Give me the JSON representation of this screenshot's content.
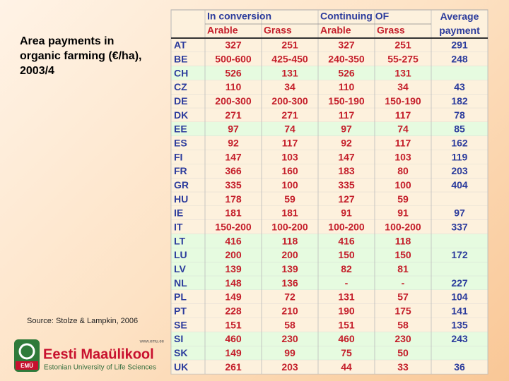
{
  "slide": {
    "title": "Area payments in organic farming (€/ha), 2003/4",
    "source": "Source: Stolze & Lampkin, 2006"
  },
  "logo": {
    "mark": "EMÜ",
    "url": "www.emu.ee",
    "name": "Eesti Maaülikool",
    "subtitle": "Estonian University of Life Sciences"
  },
  "table": {
    "group_headers": [
      "In conversion",
      "Continuing OF"
    ],
    "average_header": "Average payment",
    "sub_headers": [
      "Arable",
      "Grass",
      "Arable",
      "Grass"
    ],
    "rows": [
      {
        "code": "AT",
        "cells": [
          "327",
          "251",
          "327",
          "251",
          "291"
        ]
      },
      {
        "code": "BE",
        "cells": [
          "500-600",
          "425-450",
          "240-350",
          "55-275",
          "248"
        ]
      },
      {
        "code": "CH",
        "cells": [
          "526",
          "131",
          "526",
          "131",
          null
        ]
      },
      {
        "code": "CZ",
        "cells": [
          "110",
          "34",
          "110",
          "34",
          "43"
        ]
      },
      {
        "code": "DE",
        "cells": [
          "200-300",
          "200-300",
          "150-190",
          "150-190",
          "182"
        ]
      },
      {
        "code": "DK",
        "cells": [
          "271",
          "271",
          "117",
          "117",
          "78"
        ]
      },
      {
        "code": "EE",
        "cells": [
          "97",
          "74",
          "97",
          "74",
          "85"
        ]
      },
      {
        "code": "ES",
        "cells": [
          "92",
          "117",
          "92",
          "117",
          "162"
        ]
      },
      {
        "code": "FI",
        "cells": [
          "147",
          "103",
          "147",
          "103",
          "119"
        ]
      },
      {
        "code": "FR",
        "cells": [
          "366",
          "160",
          "183",
          "80",
          "203"
        ]
      },
      {
        "code": "GR",
        "cells": [
          "335",
          "100",
          "335",
          "100",
          "404"
        ]
      },
      {
        "code": "HU",
        "cells": [
          "178",
          "59",
          "127",
          "59",
          null
        ]
      },
      {
        "code": "IE",
        "cells": [
          "181",
          "181",
          "91",
          "91",
          "97"
        ]
      },
      {
        "code": "IT",
        "cells": [
          "150-200",
          "100-200",
          "100-200",
          "100-200",
          "337"
        ]
      },
      {
        "code": "LT",
        "cells": [
          "416",
          "118",
          "416",
          "118",
          null
        ]
      },
      {
        "code": "LU",
        "cells": [
          "200",
          "200",
          "150",
          "150",
          "172"
        ]
      },
      {
        "code": "LV",
        "cells": [
          "139",
          "139",
          "82",
          "81",
          null
        ]
      },
      {
        "code": "NL",
        "cells": [
          "148",
          "136",
          "-",
          "-",
          "227"
        ]
      },
      {
        "code": "PL",
        "cells": [
          "149",
          "72",
          "131",
          "57",
          "104"
        ]
      },
      {
        "code": "PT",
        "cells": [
          "228",
          "210",
          "190",
          "175",
          "141"
        ]
      },
      {
        "code": "SE",
        "cells": [
          "151",
          "58",
          "151",
          "58",
          "135"
        ]
      },
      {
        "code": "SI",
        "cells": [
          "460",
          "230",
          "460",
          "230",
          "243"
        ]
      },
      {
        "code": "SK",
        "cells": [
          "149",
          "99",
          "75",
          "50",
          null
        ]
      },
      {
        "code": "UK",
        "cells": [
          "261",
          "203",
          "44",
          "33",
          "36"
        ]
      }
    ]
  }
}
